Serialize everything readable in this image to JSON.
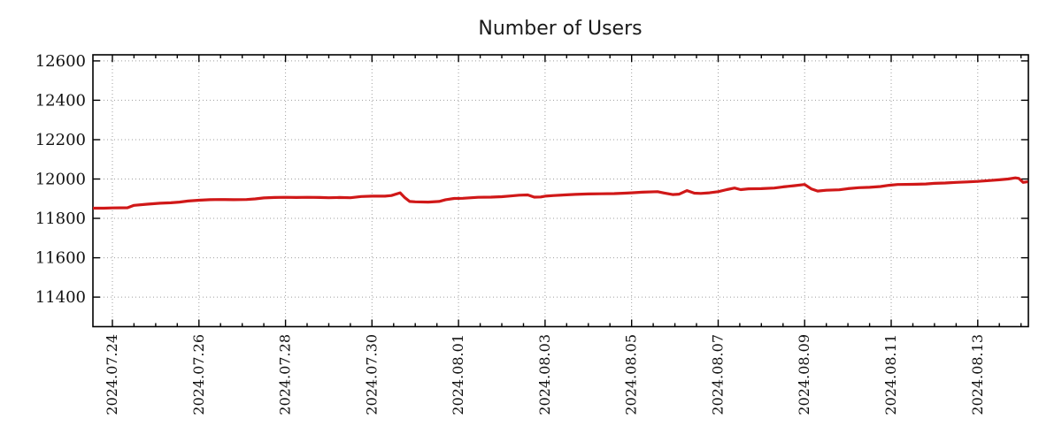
{
  "chart_data": {
    "type": "line",
    "title": "Number of Users",
    "xlabel": "",
    "ylabel": "",
    "legend": "none",
    "grid": "dotted",
    "grid_color": "#9e9e9e",
    "background": "#ffffff",
    "x_unit": "days since 2024-07-24 00:00",
    "xlim": [
      -0.45,
      21.17
    ],
    "ylim": [
      11250,
      12631
    ],
    "x_tick_positions": [
      0,
      2,
      4,
      6,
      8,
      10,
      12,
      14,
      16,
      18,
      20
    ],
    "x_tick_labels": [
      "2024.07.24",
      "2024.07.26",
      "2024.07.28",
      "2024.07.30",
      "2024.08.01",
      "2024.08.03",
      "2024.08.05",
      "2024.08.07",
      "2024.08.09",
      "2024.08.11",
      "2024.08.13"
    ],
    "x_minor_tick_step": 0.5,
    "y_ticks": [
      11400,
      11600,
      11800,
      12000,
      12200,
      12400,
      12600
    ],
    "series": [
      {
        "name": "Number of Users",
        "color": "#d01818",
        "line_width": 3.2,
        "points": [
          [
            -0.45,
            11852
          ],
          [
            -0.2,
            11852
          ],
          [
            0,
            11853
          ],
          [
            0.35,
            11854
          ],
          [
            0.5,
            11866
          ],
          [
            0.8,
            11872
          ],
          [
            1.1,
            11877
          ],
          [
            1.35,
            11879
          ],
          [
            1.55,
            11883
          ],
          [
            1.75,
            11888
          ],
          [
            2,
            11892
          ],
          [
            2.25,
            11895
          ],
          [
            2.5,
            11896
          ],
          [
            2.8,
            11895
          ],
          [
            3.1,
            11896
          ],
          [
            3.3,
            11899
          ],
          [
            3.5,
            11904
          ],
          [
            3.75,
            11906
          ],
          [
            4,
            11907
          ],
          [
            4.25,
            11906
          ],
          [
            4.5,
            11907
          ],
          [
            4.8,
            11906
          ],
          [
            5,
            11905
          ],
          [
            5.25,
            11906
          ],
          [
            5.5,
            11905
          ],
          [
            5.75,
            11911
          ],
          [
            6,
            11913
          ],
          [
            6.3,
            11913
          ],
          [
            6.45,
            11916
          ],
          [
            6.65,
            11930
          ],
          [
            6.75,
            11907
          ],
          [
            6.87,
            11886
          ],
          [
            7,
            11884
          ],
          [
            7.3,
            11883
          ],
          [
            7.55,
            11886
          ],
          [
            7.7,
            11895
          ],
          [
            7.9,
            11901
          ],
          [
            8.1,
            11902
          ],
          [
            8.45,
            11907
          ],
          [
            8.75,
            11908
          ],
          [
            9,
            11910
          ],
          [
            9.2,
            11914
          ],
          [
            9.4,
            11918
          ],
          [
            9.6,
            11919
          ],
          [
            9.75,
            11908
          ],
          [
            9.9,
            11909
          ],
          [
            10,
            11913
          ],
          [
            10.2,
            11916
          ],
          [
            10.45,
            11919
          ],
          [
            10.7,
            11922
          ],
          [
            11,
            11924
          ],
          [
            11.3,
            11925
          ],
          [
            11.6,
            11926
          ],
          [
            11.85,
            11928
          ],
          [
            12,
            11930
          ],
          [
            12.25,
            11933
          ],
          [
            12.6,
            11936
          ],
          [
            12.75,
            11929
          ],
          [
            12.95,
            11921
          ],
          [
            13.1,
            11923
          ],
          [
            13.28,
            11941
          ],
          [
            13.45,
            11928
          ],
          [
            13.6,
            11927
          ],
          [
            13.8,
            11930
          ],
          [
            14,
            11936
          ],
          [
            14.2,
            11946
          ],
          [
            14.38,
            11954
          ],
          [
            14.52,
            11946
          ],
          [
            14.7,
            11950
          ],
          [
            15,
            11951
          ],
          [
            15.3,
            11954
          ],
          [
            15.5,
            11960
          ],
          [
            15.75,
            11966
          ],
          [
            16,
            11972
          ],
          [
            16.15,
            11950
          ],
          [
            16.3,
            11939
          ],
          [
            16.5,
            11943
          ],
          [
            16.8,
            11945
          ],
          [
            17,
            11951
          ],
          [
            17.25,
            11956
          ],
          [
            17.5,
            11958
          ],
          [
            17.75,
            11962
          ],
          [
            17.95,
            11968
          ],
          [
            18.15,
            11972
          ],
          [
            18.5,
            11973
          ],
          [
            18.8,
            11975
          ],
          [
            19,
            11978
          ],
          [
            19.25,
            11980
          ],
          [
            19.5,
            11983
          ],
          [
            19.75,
            11985
          ],
          [
            20,
            11988
          ],
          [
            20.25,
            11992
          ],
          [
            20.5,
            11996
          ],
          [
            20.7,
            12000
          ],
          [
            20.87,
            12006
          ],
          [
            20.95,
            12003
          ],
          [
            21.05,
            11983
          ],
          [
            21.16,
            11986
          ]
        ]
      }
    ]
  }
}
